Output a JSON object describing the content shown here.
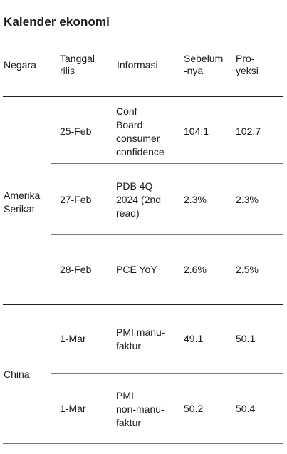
{
  "title": "Kalender ekonomi",
  "headers": {
    "country": "Negara",
    "release_date_1": "Tanggal",
    "release_date_2": "rilis",
    "info": "Informasi",
    "previous_1": "Sebelum",
    "previous_2": "-nya",
    "projection_1": "Pro-",
    "projection_2": "yeksi"
  },
  "countries": {
    "us_1": "Amerika",
    "us_2": "Serikat",
    "china": "China"
  },
  "rows": [
    {
      "date": "25-Feb",
      "info": [
        "Conf",
        "Board",
        "consumer",
        "confidence"
      ],
      "previous": "104.1",
      "projection": "102.7"
    },
    {
      "date": "27-Feb",
      "info": [
        "PDB 4Q-",
        "2024 (2nd",
        "read)"
      ],
      "previous": "2.3%",
      "projection": "2.3%"
    },
    {
      "date": "28-Feb",
      "info": [
        "PCE YoY"
      ],
      "previous": "2.6%",
      "projection": "2.5%"
    },
    {
      "date": "1-Mar",
      "info": [
        "PMI manu-",
        "faktur"
      ],
      "previous": "49.1",
      "projection": "50.1"
    },
    {
      "date": "1-Mar",
      "info": [
        "PMI",
        "non-manu-",
        "faktur"
      ],
      "previous": "50.2",
      "projection": "50.4"
    }
  ]
}
